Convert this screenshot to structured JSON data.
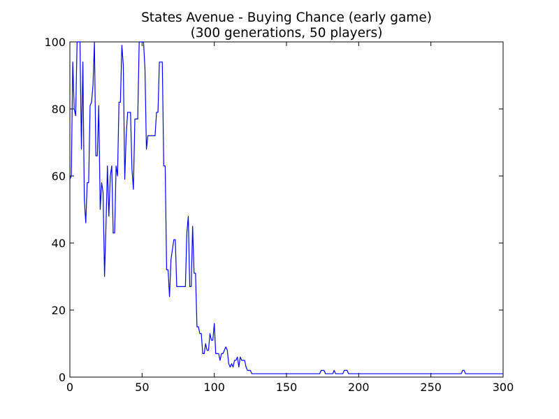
{
  "chart_data": {
    "type": "line",
    "title": "States Avenue - Buying Chance (early game)",
    "subtitle": "(300 generations, 50 players)",
    "xlabel": "",
    "ylabel": "",
    "xlim": [
      0,
      300
    ],
    "ylim": [
      0,
      100
    ],
    "x_ticks": [
      0,
      50,
      100,
      150,
      200,
      250,
      300
    ],
    "y_ticks": [
      0,
      20,
      40,
      60,
      80,
      100
    ],
    "grid": false,
    "series": [
      {
        "color": "#0000ff",
        "points": [
          [
            0,
            59
          ],
          [
            1,
            60
          ],
          [
            2,
            94
          ],
          [
            3,
            80
          ],
          [
            4,
            78
          ],
          [
            5,
            100
          ],
          [
            6,
            100
          ],
          [
            7,
            100
          ],
          [
            8,
            68
          ],
          [
            9,
            94
          ],
          [
            10,
            53
          ],
          [
            11,
            46
          ],
          [
            12,
            58
          ],
          [
            13,
            58
          ],
          [
            14,
            81
          ],
          [
            15,
            82
          ],
          [
            16,
            87
          ],
          [
            17,
            100
          ],
          [
            18,
            66
          ],
          [
            19,
            66
          ],
          [
            20,
            81
          ],
          [
            21,
            50
          ],
          [
            22,
            58
          ],
          [
            23,
            55
          ],
          [
            24,
            30
          ],
          [
            25,
            45
          ],
          [
            26,
            63
          ],
          [
            27,
            48
          ],
          [
            28,
            60
          ],
          [
            29,
            63
          ],
          [
            30,
            43
          ],
          [
            31,
            43
          ],
          [
            32,
            63
          ],
          [
            33,
            60
          ],
          [
            34,
            82
          ],
          [
            35,
            82
          ],
          [
            36,
            99
          ],
          [
            37,
            93
          ],
          [
            38,
            59
          ],
          [
            39,
            72
          ],
          [
            40,
            79
          ],
          [
            41,
            79
          ],
          [
            42,
            79
          ],
          [
            43,
            62
          ],
          [
            44,
            56
          ],
          [
            45,
            77
          ],
          [
            46,
            77
          ],
          [
            47,
            77
          ],
          [
            48,
            100
          ],
          [
            49,
            100
          ],
          [
            50,
            100
          ],
          [
            51,
            100
          ],
          [
            52,
            92
          ],
          [
            53,
            68
          ],
          [
            54,
            72
          ],
          [
            55,
            72
          ],
          [
            56,
            72
          ],
          [
            57,
            72
          ],
          [
            58,
            72
          ],
          [
            59,
            72
          ],
          [
            60,
            79
          ],
          [
            61,
            79
          ],
          [
            62,
            94
          ],
          [
            63,
            94
          ],
          [
            64,
            94
          ],
          [
            65,
            63
          ],
          [
            66,
            63
          ],
          [
            67,
            32
          ],
          [
            68,
            32
          ],
          [
            69,
            24
          ],
          [
            70,
            35
          ],
          [
            71,
            38
          ],
          [
            72,
            41
          ],
          [
            73,
            41
          ],
          [
            74,
            27
          ],
          [
            75,
            27
          ],
          [
            76,
            27
          ],
          [
            77,
            27
          ],
          [
            78,
            27
          ],
          [
            79,
            27
          ],
          [
            80,
            27
          ],
          [
            81,
            43
          ],
          [
            82,
            48
          ],
          [
            83,
            27
          ],
          [
            84,
            27
          ],
          [
            85,
            45
          ],
          [
            86,
            31
          ],
          [
            87,
            31
          ],
          [
            88,
            15
          ],
          [
            89,
            15
          ],
          [
            90,
            13
          ],
          [
            91,
            13
          ],
          [
            92,
            7
          ],
          [
            93,
            7
          ],
          [
            94,
            10
          ],
          [
            95,
            8
          ],
          [
            96,
            8
          ],
          [
            97,
            13
          ],
          [
            98,
            11
          ],
          [
            99,
            11
          ],
          [
            100,
            16
          ],
          [
            101,
            7
          ],
          [
            102,
            7
          ],
          [
            103,
            7
          ],
          [
            104,
            5
          ],
          [
            105,
            7
          ],
          [
            106,
            7
          ],
          [
            107,
            8
          ],
          [
            108,
            9
          ],
          [
            109,
            8
          ],
          [
            110,
            4
          ],
          [
            111,
            3
          ],
          [
            112,
            4
          ],
          [
            113,
            3
          ],
          [
            114,
            5
          ],
          [
            115,
            5
          ],
          [
            116,
            6
          ],
          [
            117,
            3
          ],
          [
            118,
            6
          ],
          [
            119,
            5
          ],
          [
            120,
            5
          ],
          [
            121,
            5
          ],
          [
            122,
            3
          ],
          [
            123,
            2
          ],
          [
            124,
            2
          ],
          [
            125,
            2
          ],
          [
            126,
            1
          ],
          [
            150,
            1
          ],
          [
            173,
            1
          ],
          [
            174,
            2
          ],
          [
            175,
            2
          ],
          [
            176,
            2
          ],
          [
            177,
            1
          ],
          [
            182,
            1
          ],
          [
            183,
            2
          ],
          [
            184,
            1
          ],
          [
            189,
            1
          ],
          [
            190,
            2
          ],
          [
            191,
            2
          ],
          [
            192,
            2
          ],
          [
            193,
            1
          ],
          [
            200,
            1
          ],
          [
            250,
            1
          ],
          [
            271,
            1
          ],
          [
            272,
            2
          ],
          [
            273,
            2
          ],
          [
            274,
            1
          ],
          [
            300,
            1
          ]
        ]
      }
    ]
  }
}
